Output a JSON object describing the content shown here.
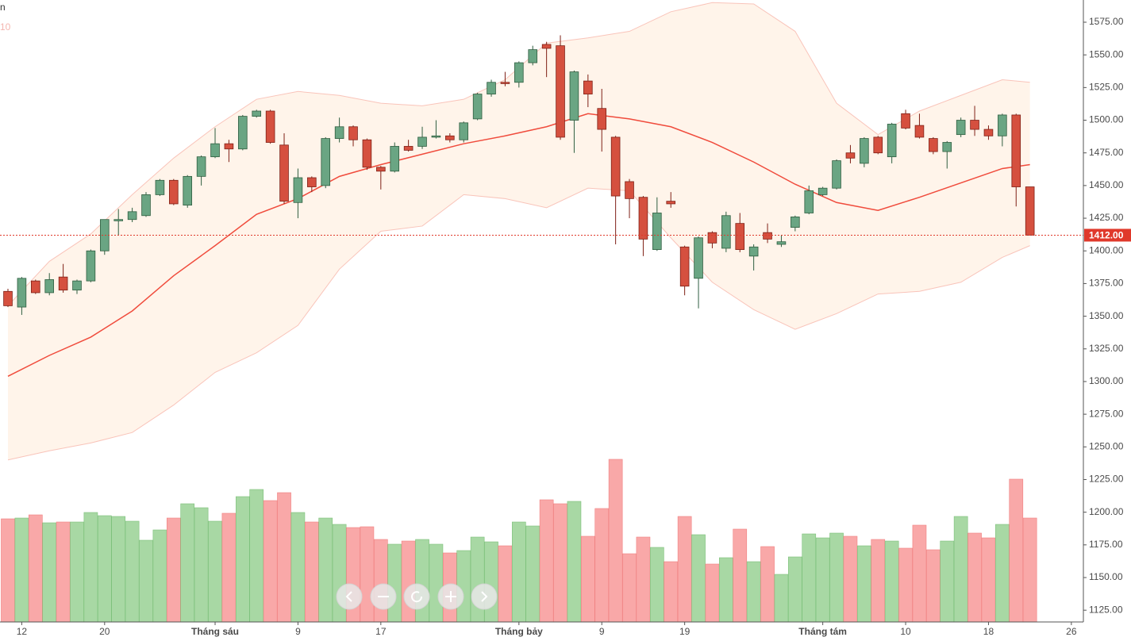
{
  "chart_data": {
    "type": "candlestick",
    "legend_texts": [
      "n",
      "10"
    ],
    "x": [
      0,
      1,
      2,
      3,
      4,
      5,
      6,
      7,
      8,
      9,
      10,
      11,
      12,
      13,
      14,
      15,
      16,
      17,
      18,
      19,
      20,
      21,
      22,
      23,
      24,
      25,
      26,
      27,
      28,
      29,
      30,
      31,
      32,
      33,
      34,
      35,
      36,
      37,
      38,
      39,
      40,
      41,
      42,
      43,
      44,
      45,
      46,
      47,
      48,
      49,
      50,
      51,
      52,
      53,
      54,
      55,
      56,
      57,
      58,
      59,
      60,
      61,
      62,
      63,
      64,
      65,
      66,
      67,
      68,
      69,
      70,
      71,
      72,
      73,
      74
    ],
    "open": [
      1369,
      1357,
      1377,
      1368,
      1380,
      1370,
      1377,
      1400,
      1423,
      1424,
      1427,
      1443,
      1454,
      1435,
      1457,
      1472,
      1482,
      1478,
      1503,
      1507,
      1481,
      1437,
      1456,
      1450,
      1486,
      1495,
      1485,
      1464,
      1461,
      1480,
      1480,
      1487,
      1488,
      1485,
      1501,
      1520,
      1529,
      1529,
      1544,
      1558,
      1557,
      1500,
      1530,
      1509,
      1487,
      1453,
      1441,
      1401,
      1438,
      1403,
      1379,
      1414,
      1402,
      1421,
      1396,
      1414,
      1405,
      1418,
      1429,
      1443,
      1448,
      1475,
      1467,
      1487,
      1472,
      1505,
      1496,
      1486,
      1476,
      1489,
      1500,
      1493,
      1488,
      1504,
      1449
    ],
    "high": [
      1371,
      1380,
      1378,
      1383,
      1390,
      1378,
      1401,
      1424,
      1432,
      1433,
      1445,
      1455,
      1455,
      1458,
      1473,
      1494,
      1485,
      1504,
      1508,
      1508,
      1490,
      1463,
      1457,
      1487,
      1502,
      1496,
      1486,
      1465,
      1483,
      1485,
      1495,
      1500,
      1490,
      1499,
      1521,
      1531,
      1537,
      1545,
      1557,
      1560,
      1565,
      1538,
      1535,
      1524,
      1488,
      1455,
      1442,
      1441,
      1445,
      1404,
      1411,
      1415,
      1430,
      1429,
      1405,
      1421,
      1412,
      1427,
      1450,
      1449,
      1470,
      1481,
      1487,
      1488,
      1498,
      1508,
      1505,
      1487,
      1484,
      1502,
      1511,
      1496,
      1505,
      1505,
      1449
    ],
    "low": [
      1357,
      1351,
      1367,
      1366,
      1368,
      1367,
      1376,
      1397,
      1412,
      1422,
      1426,
      1442,
      1435,
      1433,
      1450,
      1471,
      1468,
      1477,
      1502,
      1482,
      1436,
      1425,
      1445,
      1448,
      1483,
      1480,
      1462,
      1447,
      1460,
      1476,
      1478,
      1486,
      1483,
      1483,
      1500,
      1518,
      1526,
      1525,
      1542,
      1533,
      1485,
      1475,
      1510,
      1476,
      1405,
      1425,
      1396,
      1400,
      1433,
      1366,
      1356,
      1402,
      1399,
      1399,
      1385,
      1406,
      1403,
      1415,
      1428,
      1442,
      1447,
      1467,
      1464,
      1474,
      1467,
      1493,
      1486,
      1474,
      1463,
      1487,
      1488,
      1485,
      1480,
      1434,
      1412
    ],
    "close": [
      1358,
      1379,
      1368,
      1378,
      1370,
      1377,
      1400,
      1424,
      1424,
      1430,
      1443,
      1454,
      1436,
      1457,
      1472,
      1482,
      1478,
      1503,
      1507,
      1483,
      1438,
      1456,
      1449,
      1486,
      1495,
      1485,
      1464,
      1461,
      1480,
      1477,
      1487,
      1488,
      1485,
      1498,
      1520,
      1529,
      1528,
      1544,
      1554,
      1555,
      1487,
      1537,
      1520,
      1493,
      1442,
      1440,
      1409,
      1429,
      1436,
      1373,
      1410,
      1406,
      1427,
      1401,
      1403,
      1409,
      1407,
      1426,
      1446,
      1448,
      1469,
      1471,
      1486,
      1475,
      1497,
      1494,
      1487,
      1476,
      1483,
      1500,
      1493,
      1488,
      1504,
      1449,
      1412
    ],
    "volume": [
      130,
      131,
      135,
      125,
      126,
      126,
      138,
      134,
      133,
      127,
      103,
      116,
      131,
      149,
      144,
      127,
      137,
      158,
      167,
      153,
      163,
      138,
      126,
      131,
      123,
      119,
      120,
      104,
      98,
      102,
      104,
      98,
      87,
      90,
      107,
      101,
      96,
      126,
      121,
      154,
      149,
      152,
      108,
      143,
      205,
      86,
      107,
      94,
      76,
      133,
      110,
      73,
      81,
      117,
      76,
      95,
      60,
      82,
      111,
      106,
      112,
      108,
      96,
      104,
      102,
      93,
      122,
      91,
      102,
      133,
      112,
      106,
      123,
      180,
      131
    ],
    "up_color": "#6aa583",
    "down_color": "#d5503f",
    "volume_up_color": "#a8d8a4",
    "volume_down_color": "#f9a8a8",
    "volume_ylim": [
      0,
      230
    ],
    "bands": {
      "x": [
        0,
        3,
        6,
        9,
        12,
        15,
        18,
        21,
        24,
        27,
        30,
        33,
        36,
        39,
        42,
        45,
        48,
        51,
        54,
        57,
        60,
        63,
        66,
        69,
        72,
        74
      ],
      "upper": [
        1358,
        1392,
        1413,
        1443,
        1471,
        1495,
        1516,
        1522,
        1519,
        1513,
        1511,
        1516,
        1531,
        1559,
        1563,
        1568,
        1583,
        1590,
        1589,
        1568,
        1513,
        1489,
        1507,
        1519,
        1531,
        1529
      ],
      "middle": [
        1304,
        1320,
        1334,
        1354,
        1381,
        1404,
        1428,
        1440,
        1457,
        1466,
        1474,
        1482,
        1488,
        1495,
        1505,
        1501,
        1495,
        1483,
        1468,
        1451,
        1437,
        1431,
        1441,
        1452,
        1463,
        1466
      ],
      "lower": [
        1240,
        1247,
        1253,
        1261,
        1282,
        1307,
        1322,
        1343,
        1386,
        1415,
        1419,
        1443,
        1440,
        1433,
        1448,
        1446,
        1410,
        1376,
        1355,
        1340,
        1352,
        1367,
        1369,
        1376,
        1395,
        1404
      ],
      "middle_color": "#f04b3c",
      "band_color": "#f9c4ba",
      "fill_color": "#fff4ea"
    },
    "last": {
      "value": 1412,
      "label": "1412.00"
    },
    "last_color": "#e0392b",
    "xlim": [
      -0.575,
      77.87
    ],
    "ylim": [
      1116,
      1592
    ],
    "yticks": [
      {
        "value": 1125,
        "label": "1125.00"
      },
      {
        "value": 1150,
        "label": "1150.00"
      },
      {
        "value": 1175,
        "label": "1175.00"
      },
      {
        "value": 1200,
        "label": "1200.00"
      },
      {
        "value": 1225,
        "label": "1225.00"
      },
      {
        "value": 1250,
        "label": "1250.00"
      },
      {
        "value": 1275,
        "label": "1275.00"
      },
      {
        "value": 1300,
        "label": "1300.00"
      },
      {
        "value": 1325,
        "label": "1325.00"
      },
      {
        "value": 1350,
        "label": "1350.00"
      },
      {
        "value": 1375,
        "label": "1375.00"
      },
      {
        "value": 1400,
        "label": "1400.00"
      },
      {
        "value": 1425,
        "label": "1425.00"
      },
      {
        "value": 1450,
        "label": "1450.00"
      },
      {
        "value": 1475,
        "label": "1475.00"
      },
      {
        "value": 1500,
        "label": "1500.00"
      },
      {
        "value": 1525,
        "label": "1525.00"
      },
      {
        "value": 1550,
        "label": "1550.00"
      },
      {
        "value": 1575,
        "label": "1575.00"
      }
    ],
    "xticks": [
      {
        "value": 1,
        "label": "12"
      },
      {
        "value": 7,
        "label": "20"
      },
      {
        "value": 15,
        "label": "Tháng sáu"
      },
      {
        "value": 21,
        "label": "9"
      },
      {
        "value": 27,
        "label": "17"
      },
      {
        "value": 37,
        "label": "Tháng bảy"
      },
      {
        "value": 43,
        "label": "9"
      },
      {
        "value": 49,
        "label": "19"
      },
      {
        "value": 59,
        "label": "Tháng tám"
      },
      {
        "value": 65,
        "label": "10"
      },
      {
        "value": 71,
        "label": "18"
      },
      {
        "value": 77,
        "label": "26"
      }
    ]
  }
}
